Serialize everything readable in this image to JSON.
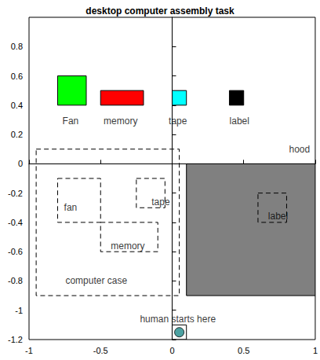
{
  "chart_data": {
    "type": "layout",
    "title": "desktop computer assembly task",
    "xlim": [
      -1,
      1
    ],
    "ylim": [
      -1.2,
      1
    ],
    "xticks": [
      -1,
      -0.5,
      0,
      0.5,
      1
    ],
    "yticks": [
      -1.2,
      -1,
      -0.8,
      -0.6,
      -0.4,
      -0.2,
      0,
      0.2,
      0.4,
      0.6,
      0.8
    ],
    "shapes": [
      {
        "x": [
          -0.8,
          -0.6
        ],
        "y": [
          0.4,
          0.6
        ],
        "color": "#00ff00",
        "line_style": "solid"
      },
      {
        "x": [
          -0.5,
          -0.2
        ],
        "y": [
          0.4,
          0.5
        ],
        "color": "#ff0000",
        "line_style": "solid"
      },
      {
        "x": [
          0,
          0.1
        ],
        "y": [
          0.4,
          0.5
        ],
        "color": "#00ffff",
        "line_style": "solid"
      },
      {
        "x": [
          0.4,
          0.5
        ],
        "y": [
          0.4,
          0.5
        ],
        "color": "#000000",
        "line_style": "solid"
      },
      {
        "x": [
          -0.95,
          0.05
        ],
        "y": [
          -0.9,
          0.1
        ],
        "line_style": "dashed"
      },
      {
        "x": [
          -0.8,
          -0.5
        ],
        "y": [
          -0.4,
          -0.1
        ],
        "line_style": "dashed"
      },
      {
        "x": [
          -0.25,
          -0.05
        ],
        "y": [
          -0.3,
          -0.1
        ],
        "line_style": "dashed"
      },
      {
        "x": [
          -0.5,
          -0.1
        ],
        "y": [
          -0.6,
          -0.4
        ],
        "line_style": "dashed"
      },
      {
        "x": [
          0.1,
          1
        ],
        "y": [
          -0.9,
          0
        ],
        "color": "#808080",
        "line_style": "solid"
      },
      {
        "x": [
          0.6,
          0.8
        ],
        "y": [
          -0.4,
          -0.2
        ],
        "line_style": "dashed"
      },
      {
        "x": [
          0,
          0.1
        ],
        "y": [
          -1.2,
          -1.1
        ],
        "line_style": "solid"
      }
    ],
    "texts": [
      {
        "text": "Fan",
        "x": -0.71,
        "y": 0.29
      },
      {
        "text": "memory",
        "x": -0.36,
        "y": 0.29
      },
      {
        "text": "tape",
        "x": 0.04,
        "y": 0.29
      },
      {
        "text": "label",
        "x": 0.47,
        "y": 0.29
      },
      {
        "text": "hood",
        "x": 0.89,
        "y": 0.1
      },
      {
        "text": "fan",
        "x": -0.71,
        "y": -0.3
      },
      {
        "text": "tape",
        "x": -0.08,
        "y": -0.26
      },
      {
        "text": "memory",
        "x": -0.31,
        "y": -0.56
      },
      {
        "text": "label",
        "x": 0.74,
        "y": -0.36
      },
      {
        "text": "computer case",
        "x": -0.53,
        "y": -0.8
      },
      {
        "text": "human starts here",
        "x": 0.04,
        "y": -1.06
      }
    ],
    "points": [
      {
        "x": 0.05,
        "y": -1.15,
        "color": "#1f8a8a",
        "marker": "circle"
      }
    ]
  }
}
